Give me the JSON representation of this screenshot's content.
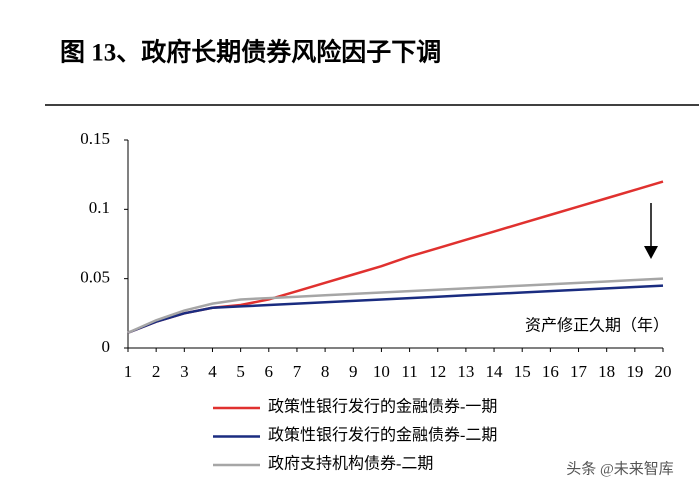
{
  "chart_data": {
    "type": "line",
    "title": "图 13、政府长期债券风险因子下调",
    "x_annotation": "资产修正久期（年）",
    "watermark": "头条 @未来智库",
    "x": [
      1,
      2,
      3,
      4,
      5,
      6,
      7,
      8,
      9,
      10,
      11,
      12,
      13,
      14,
      15,
      16,
      17,
      18,
      19,
      20
    ],
    "xlim": [
      1,
      20
    ],
    "xticks": [
      1,
      2,
      3,
      4,
      5,
      6,
      7,
      8,
      9,
      10,
      11,
      12,
      13,
      14,
      15,
      16,
      17,
      18,
      19,
      20
    ],
    "ylim": [
      0,
      0.15
    ],
    "yticks": [
      0,
      0.05,
      0.1,
      0.15
    ],
    "grid": false,
    "legend": "bottom",
    "series": [
      {
        "name": "政策性银行发行的金融债券-一期",
        "color": "#e0312f",
        "values": [
          0.011,
          0.019,
          0.025,
          0.029,
          0.031,
          0.035,
          0.041,
          0.047,
          0.053,
          0.059,
          0.066,
          0.072,
          0.078,
          0.084,
          0.09,
          0.096,
          0.102,
          0.108,
          0.114,
          0.12
        ]
      },
      {
        "name": "政策性银行发行的金融债券-二期",
        "color": "#1a2c80",
        "values": [
          0.011,
          0.019,
          0.025,
          0.029,
          0.03,
          0.031,
          0.032,
          0.033,
          0.034,
          0.035,
          0.036,
          0.037,
          0.038,
          0.039,
          0.04,
          0.041,
          0.042,
          0.043,
          0.044,
          0.045
        ]
      },
      {
        "name": "政府支持机构债券-二期",
        "color": "#a6a6a6",
        "values": [
          0.011,
          0.02,
          0.027,
          0.032,
          0.035,
          0.036,
          0.037,
          0.038,
          0.039,
          0.04,
          0.041,
          0.042,
          0.043,
          0.044,
          0.045,
          0.046,
          0.047,
          0.048,
          0.049,
          0.05
        ]
      }
    ]
  }
}
